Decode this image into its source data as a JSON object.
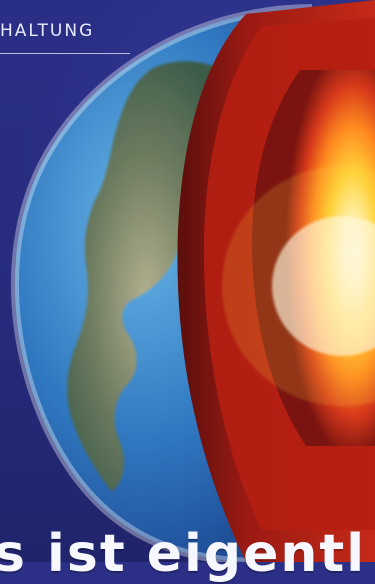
{
  "section": {
    "label": "HALTUNG"
  },
  "hero": {
    "image_name": "earth-cross-section-illustration",
    "colors": {
      "background": "#2a2f86",
      "ocean": "#3e86c6",
      "land": "#6f7a5a",
      "crust": "#7b1410",
      "mantle": "#b51f12",
      "core": "#ffd23a"
    }
  },
  "headline": {
    "text": "s ist eigentl"
  }
}
